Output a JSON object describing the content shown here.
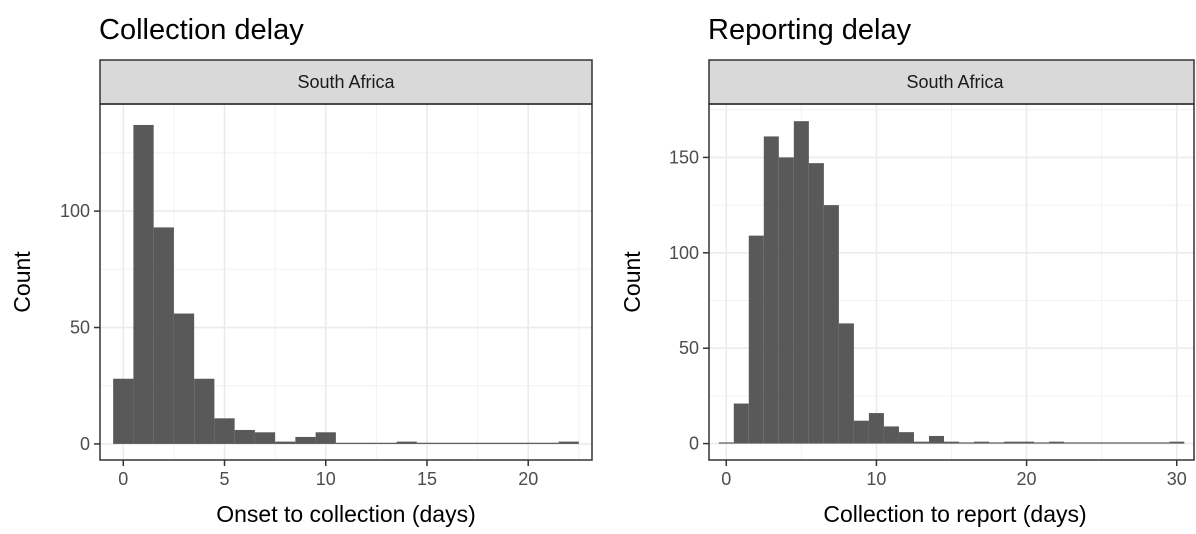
{
  "chart_data": [
    {
      "type": "bar",
      "title": "Collection delay",
      "facet_label": "South Africa",
      "xlabel": "Onset to collection (days)",
      "ylabel": "Count",
      "xlim": [
        -0.5,
        22.5
      ],
      "ylim": [
        0,
        140
      ],
      "xticks": [
        0,
        5,
        10,
        15,
        20
      ],
      "yticks": [
        0,
        50,
        100
      ],
      "bin_width": 1,
      "bins": [
        {
          "x": 0,
          "count": 28
        },
        {
          "x": 1,
          "count": 137
        },
        {
          "x": 2,
          "count": 93
        },
        {
          "x": 3,
          "count": 56
        },
        {
          "x": 4,
          "count": 28
        },
        {
          "x": 5,
          "count": 11
        },
        {
          "x": 6,
          "count": 6
        },
        {
          "x": 7,
          "count": 5
        },
        {
          "x": 8,
          "count": 1
        },
        {
          "x": 9,
          "count": 3
        },
        {
          "x": 10,
          "count": 5
        },
        {
          "x": 11,
          "count": 0
        },
        {
          "x": 12,
          "count": 0
        },
        {
          "x": 13,
          "count": 0
        },
        {
          "x": 14,
          "count": 1
        },
        {
          "x": 15,
          "count": 0
        },
        {
          "x": 16,
          "count": 0
        },
        {
          "x": 17,
          "count": 0
        },
        {
          "x": 18,
          "count": 0
        },
        {
          "x": 19,
          "count": 0
        },
        {
          "x": 20,
          "count": 0
        },
        {
          "x": 21,
          "count": 0
        },
        {
          "x": 22,
          "count": 1
        }
      ],
      "grid": true,
      "bar_color": "#595959",
      "strip_color": "#d9d9d9"
    },
    {
      "type": "bar",
      "title": "Reporting delay",
      "facet_label": "South Africa",
      "xlabel": "Collection to report (days)",
      "ylabel": "Count",
      "xlim": [
        -0.5,
        30.5
      ],
      "ylim": [
        0,
        175
      ],
      "xticks": [
        0,
        10,
        20,
        30
      ],
      "yticks": [
        0,
        50,
        100,
        150
      ],
      "bin_width": 1,
      "bins": [
        {
          "x": 0,
          "count": 0
        },
        {
          "x": 1,
          "count": 21
        },
        {
          "x": 2,
          "count": 109
        },
        {
          "x": 3,
          "count": 161
        },
        {
          "x": 4,
          "count": 150
        },
        {
          "x": 5,
          "count": 169
        },
        {
          "x": 6,
          "count": 147
        },
        {
          "x": 7,
          "count": 125
        },
        {
          "x": 8,
          "count": 63
        },
        {
          "x": 9,
          "count": 12
        },
        {
          "x": 10,
          "count": 16
        },
        {
          "x": 11,
          "count": 9
        },
        {
          "x": 12,
          "count": 6
        },
        {
          "x": 13,
          "count": 1
        },
        {
          "x": 14,
          "count": 4
        },
        {
          "x": 15,
          "count": 1
        },
        {
          "x": 16,
          "count": 0
        },
        {
          "x": 17,
          "count": 1
        },
        {
          "x": 18,
          "count": 0
        },
        {
          "x": 19,
          "count": 1
        },
        {
          "x": 20,
          "count": 1
        },
        {
          "x": 21,
          "count": 0
        },
        {
          "x": 22,
          "count": 1
        },
        {
          "x": 23,
          "count": 0
        },
        {
          "x": 24,
          "count": 0
        },
        {
          "x": 25,
          "count": 0
        },
        {
          "x": 26,
          "count": 0
        },
        {
          "x": 27,
          "count": 0
        },
        {
          "x": 28,
          "count": 0
        },
        {
          "x": 29,
          "count": 0
        },
        {
          "x": 30,
          "count": 1
        }
      ],
      "grid": true,
      "bar_color": "#595959",
      "strip_color": "#d9d9d9"
    }
  ]
}
